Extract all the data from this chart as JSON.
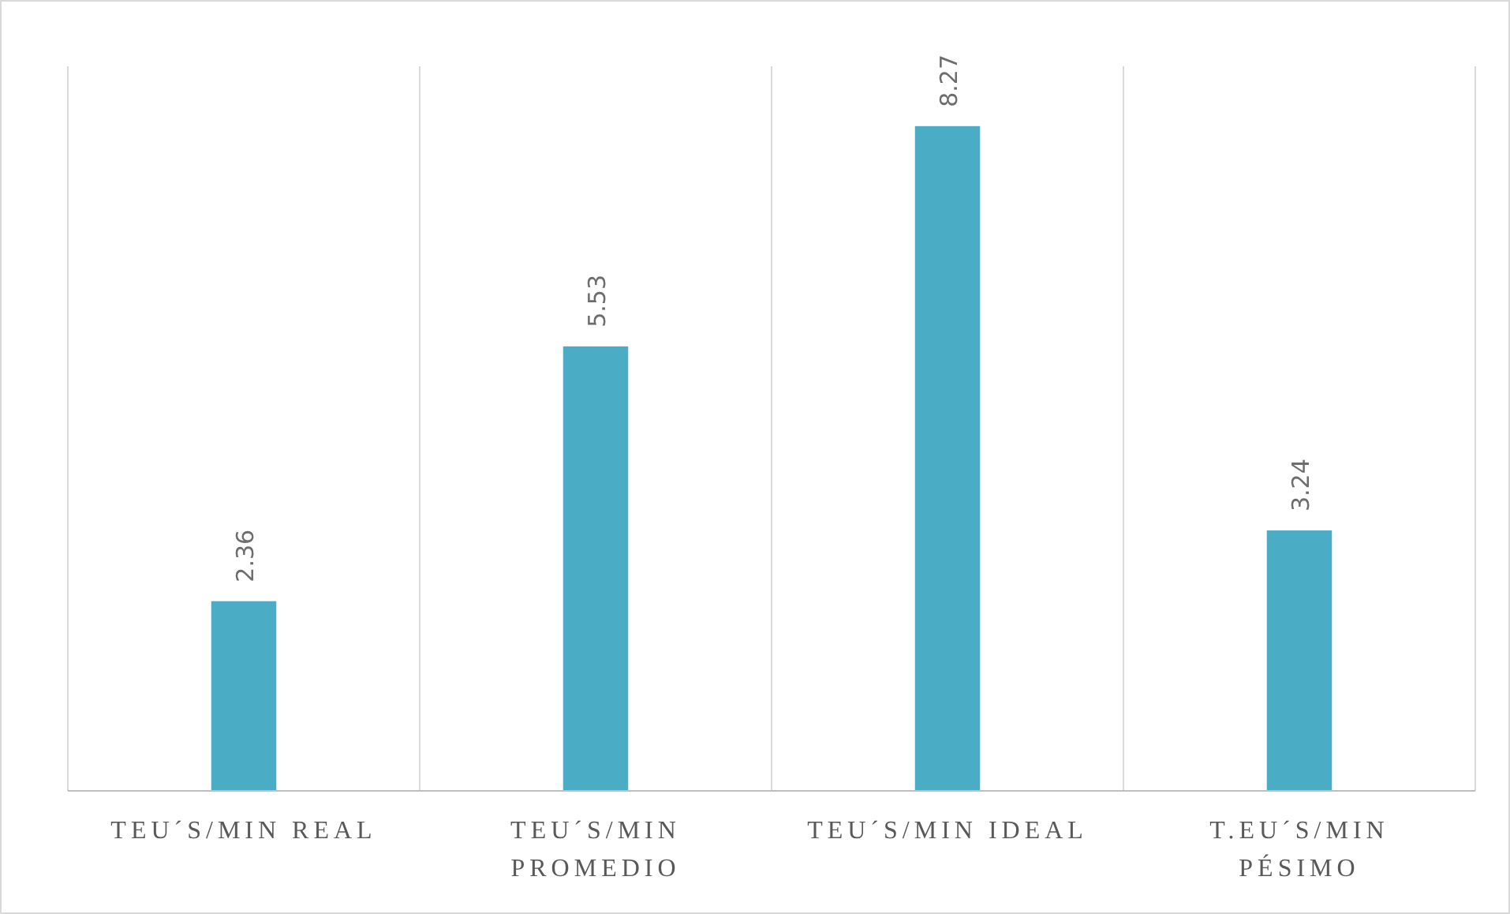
{
  "chart_data": {
    "type": "bar",
    "categories": [
      "TEU´S/MIN REAL",
      "TEU´S/MIN PROMEDIO",
      "TEU´S/MIN IDEAL",
      "T.EU´S/MIN PÉSIMO"
    ],
    "values": [
      2.36,
      5.53,
      8.27,
      3.24
    ],
    "color": "#4bacc6",
    "data_labels": true,
    "grid": "x"
  }
}
